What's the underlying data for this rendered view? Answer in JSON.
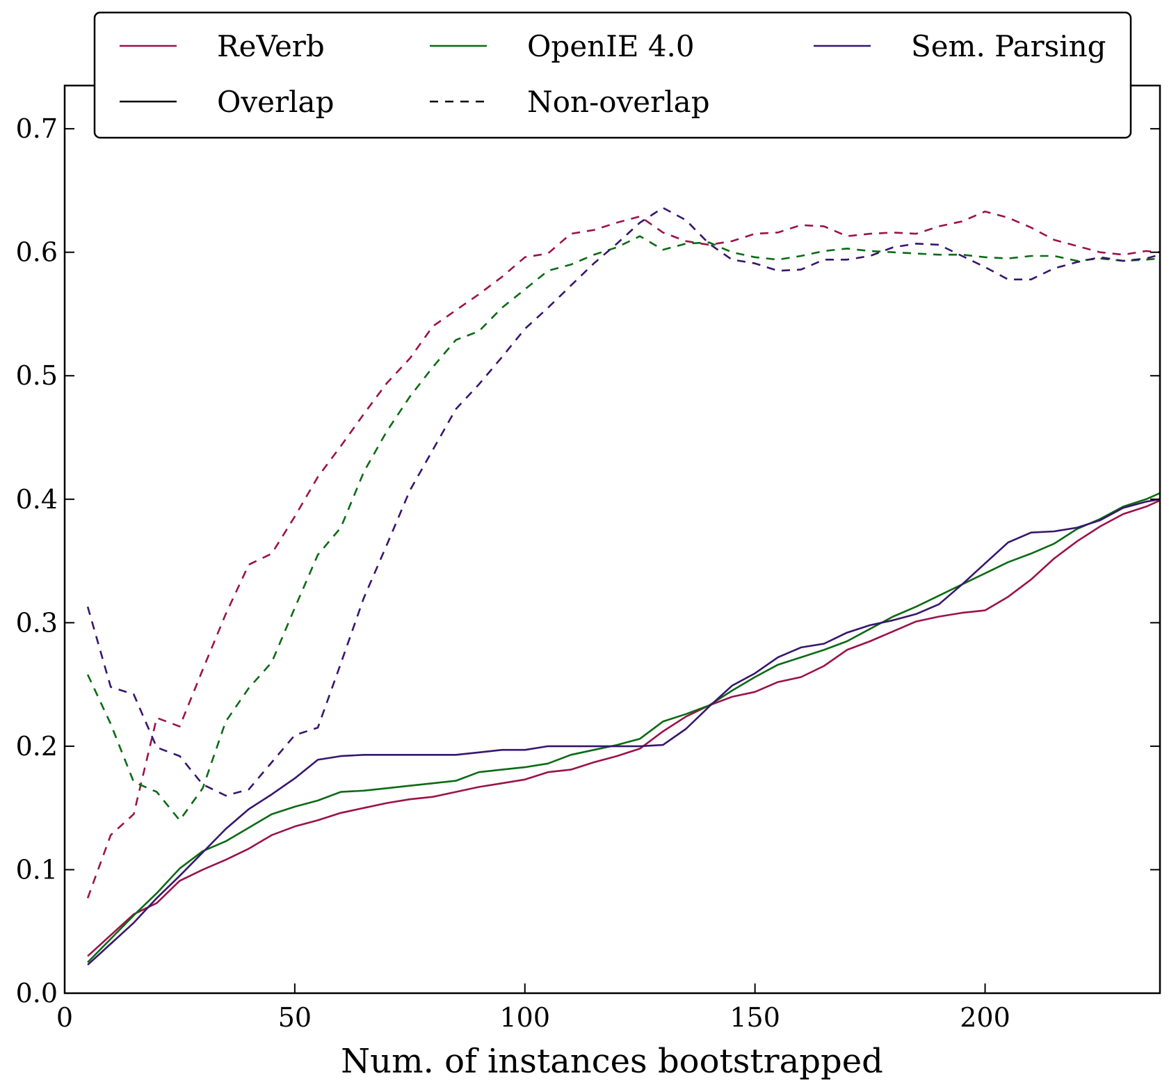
{
  "chart_data": {
    "type": "line",
    "title": "",
    "xlabel": "Num. of instances bootstrapped",
    "ylabel": "",
    "xlim": [
      0,
      238
    ],
    "ylim": [
      0,
      0.735
    ],
    "xticks": [
      0,
      50,
      100,
      150,
      200
    ],
    "yticks": [
      0.0,
      0.1,
      0.2,
      0.3,
      0.4,
      0.5,
      0.6,
      0.7
    ],
    "xtick_labels": [
      "0",
      "50",
      "100",
      "150",
      "200"
    ],
    "ytick_labels": [
      "0.0",
      "0.1",
      "0.2",
      "0.3",
      "0.4",
      "0.5",
      "0.6",
      "0.7"
    ],
    "grid": false,
    "legend_position": "top-center",
    "legend": [
      {
        "label": "ReVerb",
        "color": "#9b1248",
        "style": "solid"
      },
      {
        "label": "OpenIE 4.0",
        "color": "#0b6a14",
        "style": "solid"
      },
      {
        "label": "Sem. Parsing",
        "color": "#37156e",
        "style": "solid"
      },
      {
        "label": "Overlap",
        "color": "#000000",
        "style": "solid"
      },
      {
        "label": "Non-overlap",
        "color": "#000000",
        "style": "dashed"
      }
    ],
    "x": [
      5,
      10,
      15,
      20,
      25,
      30,
      35,
      40,
      45,
      50,
      55,
      60,
      65,
      70,
      75,
      80,
      85,
      90,
      95,
      100,
      105,
      110,
      115,
      120,
      125,
      130,
      135,
      140,
      145,
      150,
      155,
      160,
      165,
      170,
      175,
      180,
      185,
      190,
      195,
      200,
      205,
      210,
      215,
      220,
      225,
      230,
      235,
      238
    ],
    "series": [
      {
        "name": "ReVerb (Overlap)",
        "system": "ReVerb",
        "style": "solid",
        "color": "#9b1248",
        "values": [
          0.03,
          0.047,
          0.064,
          0.073,
          0.091,
          0.1,
          0.108,
          0.117,
          0.128,
          0.135,
          0.14,
          0.146,
          0.15,
          0.154,
          0.157,
          0.159,
          0.163,
          0.167,
          0.17,
          0.173,
          0.179,
          0.181,
          0.187,
          0.192,
          0.198,
          0.212,
          0.224,
          0.233,
          0.24,
          0.244,
          0.252,
          0.256,
          0.265,
          0.278,
          0.285,
          0.293,
          0.301,
          0.305,
          0.308,
          0.31,
          0.321,
          0.335,
          0.352,
          0.366,
          0.378,
          0.388,
          0.394,
          0.399
        ]
      },
      {
        "name": "OpenIE 4.0 (Overlap)",
        "system": "OpenIE 4.0",
        "style": "solid",
        "color": "#0b6a14",
        "values": [
          0.025,
          0.044,
          0.063,
          0.081,
          0.101,
          0.115,
          0.123,
          0.134,
          0.145,
          0.151,
          0.156,
          0.163,
          0.164,
          0.166,
          0.168,
          0.17,
          0.172,
          0.179,
          0.181,
          0.183,
          0.186,
          0.193,
          0.197,
          0.201,
          0.206,
          0.22,
          0.226,
          0.233,
          0.245,
          0.256,
          0.266,
          0.272,
          0.278,
          0.285,
          0.295,
          0.305,
          0.313,
          0.322,
          0.331,
          0.34,
          0.349,
          0.356,
          0.364,
          0.376,
          0.384,
          0.394,
          0.4,
          0.405
        ]
      },
      {
        "name": "Sem. Parsing (Overlap)",
        "system": "Sem. Parsing",
        "style": "solid",
        "color": "#37156e",
        "values": [
          0.023,
          0.04,
          0.057,
          0.077,
          0.095,
          0.114,
          0.133,
          0.149,
          0.161,
          0.174,
          0.189,
          0.192,
          0.193,
          0.193,
          0.193,
          0.193,
          0.193,
          0.195,
          0.197,
          0.197,
          0.2,
          0.2,
          0.2,
          0.2,
          0.2,
          0.201,
          0.214,
          0.232,
          0.249,
          0.259,
          0.272,
          0.28,
          0.283,
          0.292,
          0.298,
          0.302,
          0.307,
          0.315,
          0.331,
          0.348,
          0.365,
          0.373,
          0.374,
          0.377,
          0.383,
          0.393,
          0.398,
          0.4
        ]
      },
      {
        "name": "ReVerb (Non-overlap)",
        "system": "ReVerb",
        "style": "dashed",
        "color": "#9b1248",
        "values": [
          0.077,
          0.128,
          0.145,
          0.223,
          0.216,
          0.262,
          0.307,
          0.347,
          0.356,
          0.386,
          0.418,
          0.443,
          0.469,
          0.494,
          0.514,
          0.54,
          0.553,
          0.566,
          0.58,
          0.596,
          0.599,
          0.615,
          0.618,
          0.624,
          0.629,
          0.616,
          0.609,
          0.606,
          0.609,
          0.615,
          0.616,
          0.622,
          0.621,
          0.613,
          0.615,
          0.616,
          0.615,
          0.621,
          0.625,
          0.633,
          0.628,
          0.62,
          0.61,
          0.605,
          0.6,
          0.598,
          0.601,
          0.6
        ]
      },
      {
        "name": "OpenIE 4.0 (Non-overlap)",
        "system": "OpenIE 4.0",
        "style": "dashed",
        "color": "#0b6a14",
        "values": [
          0.258,
          0.218,
          0.171,
          0.163,
          0.14,
          0.166,
          0.22,
          0.247,
          0.268,
          0.312,
          0.355,
          0.377,
          0.422,
          0.455,
          0.483,
          0.507,
          0.529,
          0.536,
          0.555,
          0.57,
          0.585,
          0.59,
          0.598,
          0.604,
          0.613,
          0.602,
          0.607,
          0.608,
          0.6,
          0.596,
          0.594,
          0.597,
          0.601,
          0.603,
          0.601,
          0.6,
          0.599,
          0.598,
          0.598,
          0.596,
          0.595,
          0.597,
          0.597,
          0.593,
          0.595,
          0.593,
          0.594,
          0.595
        ]
      },
      {
        "name": "Sem. Parsing (Non-overlap)",
        "system": "Sem. Parsing",
        "style": "dashed",
        "color": "#37156e",
        "values": [
          0.313,
          0.248,
          0.242,
          0.199,
          0.192,
          0.169,
          0.16,
          0.165,
          0.187,
          0.209,
          0.215,
          0.267,
          0.32,
          0.363,
          0.407,
          0.44,
          0.473,
          0.493,
          0.515,
          0.538,
          0.555,
          0.573,
          0.591,
          0.607,
          0.624,
          0.636,
          0.626,
          0.607,
          0.594,
          0.591,
          0.585,
          0.586,
          0.594,
          0.594,
          0.597,
          0.604,
          0.607,
          0.606,
          0.597,
          0.588,
          0.578,
          0.578,
          0.587,
          0.592,
          0.596,
          0.593,
          0.595,
          0.598
        ]
      }
    ]
  }
}
